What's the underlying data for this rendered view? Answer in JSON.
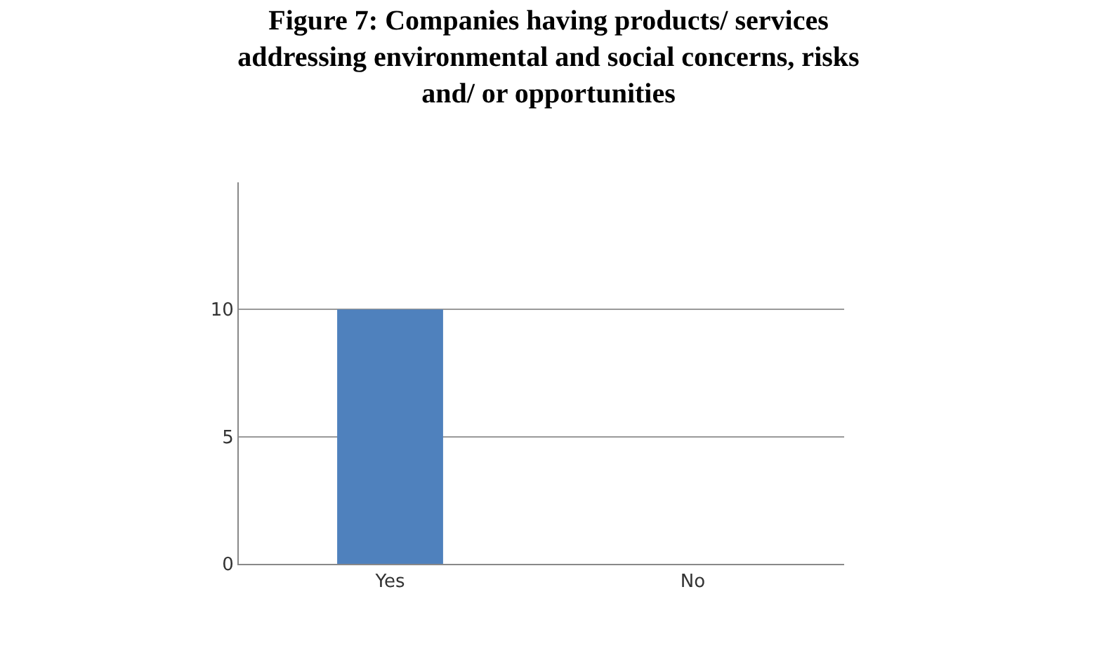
{
  "chart_data": {
    "type": "bar",
    "title": "Figure 7: Companies having products/ services addressing environmental and social concerns, risks and/ or opportunities",
    "categories": [
      "Yes",
      "No"
    ],
    "values": [
      10,
      0
    ],
    "color": "#4f81bd",
    "ylim": [
      0,
      15
    ],
    "yticks": [
      0,
      5,
      10
    ],
    "grid": "y"
  }
}
